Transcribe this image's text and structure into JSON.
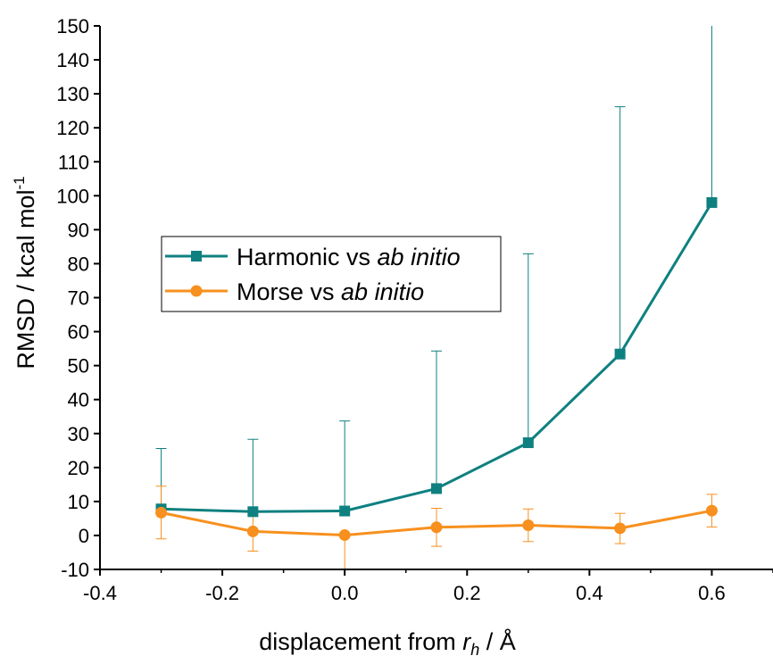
{
  "chart_data": {
    "type": "line",
    "title": "",
    "xlabel": {
      "prefix": "displacement from ",
      "symbol": "r",
      "subscript": "h",
      "suffix": " / Å"
    },
    "ylabel": {
      "text": "RMSD / kcal mol",
      "superscript": "-1"
    },
    "xlim": [
      -0.4,
      0.7
    ],
    "ylim": [
      -10,
      150
    ],
    "xticks": [
      "-0.4",
      "-0.2",
      "0.0",
      "0.2",
      "0.4",
      "0.6"
    ],
    "yticks": [
      "-10",
      "0",
      "10",
      "20",
      "30",
      "40",
      "50",
      "60",
      "70",
      "80",
      "90",
      "100",
      "110",
      "120",
      "130",
      "140",
      "150"
    ],
    "grid": false,
    "legend_position": "center-left",
    "x": [
      -0.3,
      -0.15,
      0.0,
      0.15,
      0.3,
      0.45,
      0.6
    ],
    "series": [
      {
        "name": "Harmonic vs ab initio",
        "name_plain": "Harmonic vs ",
        "name_italic": "ab initio",
        "color": "#0f8080",
        "marker": "square",
        "values": [
          7.8,
          7.0,
          7.2,
          13.8,
          27.3,
          53.4,
          98.0
        ],
        "error_high": [
          25.6,
          28.3,
          33.7,
          54.3,
          82.9,
          126.2,
          150
        ]
      },
      {
        "name": "Morse vs ab initio",
        "name_plain": "Morse vs ",
        "name_italic": "ab initio",
        "color": "#f7901e",
        "marker": "circle",
        "values": [
          6.7,
          1.2,
          0.1,
          2.4,
          3.0,
          2.1,
          7.3
        ],
        "error_low": [
          -1.0,
          -4.6,
          -10,
          -3.2,
          -1.8,
          -2.4,
          2.5
        ],
        "error_high": [
          14.5,
          7.0,
          0.1,
          8.0,
          7.8,
          6.5,
          12.1
        ]
      }
    ]
  }
}
